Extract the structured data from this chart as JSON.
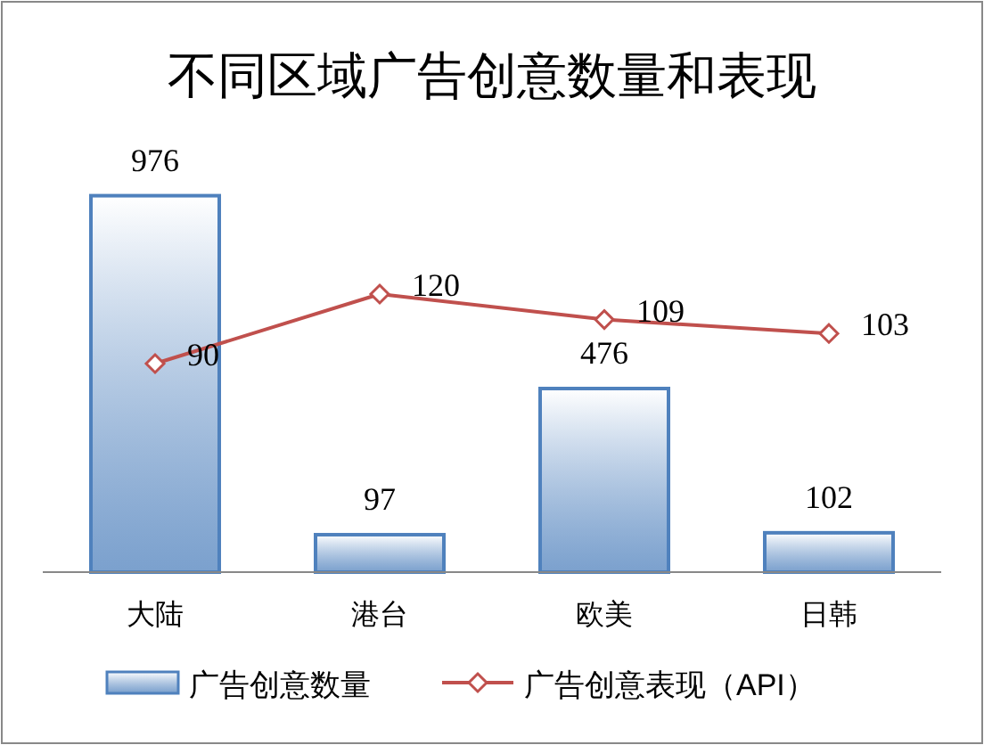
{
  "chart_data": {
    "type": "bar",
    "title": "不同区域广告创意数量和表现",
    "categories": [
      "大陆",
      "港台",
      "欧美",
      "日韩"
    ],
    "series": [
      {
        "name": "广告创意数量",
        "color": "#4f81bd",
        "values": [
          976,
          97,
          476,
          102
        ]
      },
      {
        "name": "广告创意表现（API）",
        "type": "line",
        "axis": "y2",
        "color": "#c0504d",
        "values": [
          90,
          120,
          109,
          103
        ]
      }
    ],
    "marker": "diamond",
    "data_labels": true,
    "legend": "bottom"
  }
}
